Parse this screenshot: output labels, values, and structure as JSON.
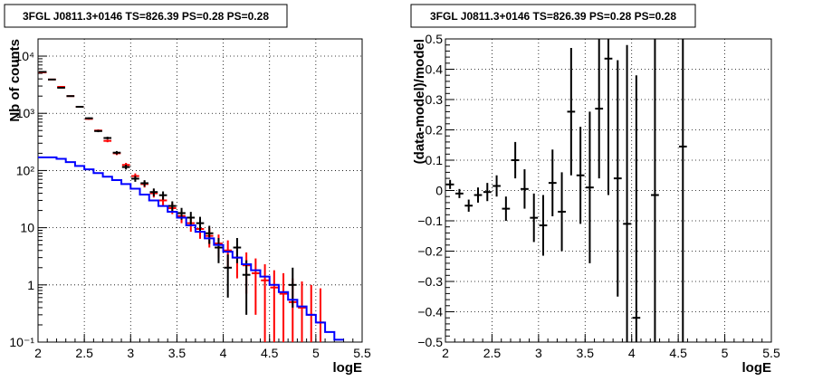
{
  "chart_data": [
    {
      "type": "scatter",
      "title": "3FGL J0811.3+0146 TS=826.39 PS=0.28 PS=0.28",
      "xlabel": "logE",
      "ylabel": "Nb of counts",
      "xlim": [
        2,
        5.5
      ],
      "ylim": [
        0.1,
        20000
      ],
      "yscale": "log",
      "grid": true,
      "x_ticks": [
        "2",
        "2.5",
        "3",
        "3.5",
        "4",
        "4.5",
        "5",
        "5.5"
      ],
      "y_ticks": [
        "10⁻¹",
        "1",
        "10",
        "10²",
        "10³",
        "10⁴"
      ],
      "series": [
        {
          "color": "#ff0000",
          "style": "errorbar",
          "x": [
            2.05,
            2.15,
            2.25,
            2.35,
            2.45,
            2.55,
            2.65,
            2.75,
            2.85,
            2.95,
            3.05,
            3.15,
            3.25,
            3.35,
            3.45,
            3.55,
            3.65,
            3.75,
            3.85,
            3.95,
            4.05,
            4.15,
            4.25,
            4.35,
            4.45,
            4.55,
            4.65,
            4.75,
            4.85,
            4.95,
            5.05
          ],
          "y": [
            5200,
            3900,
            2900,
            2000,
            1300,
            800,
            500,
            330,
            200,
            125,
            80,
            58,
            40,
            30,
            22,
            16,
            12,
            9.5,
            7.2,
            5.3,
            4.0,
            3.0,
            2.2,
            1.6,
            1.2,
            0.9,
            0.7,
            0.5,
            0.4,
            0.3,
            0.22
          ],
          "yerr_low": [
            70,
            60,
            54,
            45,
            36,
            28,
            22,
            18,
            14,
            11,
            9,
            7.6,
            6.3,
            5.5,
            4.7,
            4.0,
            3.5,
            3.1,
            2.7,
            2.3,
            2.0,
            1.7,
            1.5,
            1.3,
            1.1,
            0.9,
            0.7,
            0.5,
            0.4,
            0.3,
            0.22
          ],
          "yerr_high": [
            70,
            60,
            54,
            45,
            36,
            28,
            22,
            18,
            14,
            11,
            9,
            7.6,
            6.3,
            5.5,
            4.7,
            4.0,
            3.5,
            3.1,
            2.7,
            2.3,
            2.0,
            1.7,
            1.5,
            1.3,
            1.1,
            0.9,
            0.9,
            0.8,
            0.75,
            0.7,
            0.65
          ]
        },
        {
          "color": "#000000",
          "style": "errorbar",
          "x": [
            2.05,
            2.15,
            2.25,
            2.35,
            2.45,
            2.55,
            2.65,
            2.75,
            2.85,
            2.95,
            3.05,
            3.15,
            3.25,
            3.35,
            3.45,
            3.55,
            3.65,
            3.75,
            3.85,
            3.95,
            4.05,
            4.15,
            4.25,
            4.75
          ],
          "y": [
            5300,
            3900,
            2800,
            2000,
            1300,
            820,
            490,
            370,
            205,
            115,
            72,
            60,
            42,
            37,
            24,
            18,
            15,
            12,
            8,
            4.5,
            2.0,
            4.5,
            1.5,
            1.0
          ],
          "yerr_low": [
            70,
            60,
            53,
            45,
            36,
            29,
            22,
            19,
            14,
            11,
            8.5,
            7.7,
            6.5,
            6.1,
            4.9,
            4.2,
            3.9,
            3.5,
            2.8,
            2.1,
            1.4,
            2.1,
            1.2,
            0.6
          ],
          "yerr_high": [
            70,
            60,
            53,
            45,
            36,
            29,
            22,
            19,
            14,
            11,
            8.5,
            7.7,
            6.5,
            6.1,
            4.9,
            4.2,
            3.9,
            3.5,
            2.8,
            2.1,
            1.4,
            2.1,
            1.2,
            1.0
          ]
        },
        {
          "color": "#0000ff",
          "style": "step",
          "x": [
            2.05,
            2.15,
            2.25,
            2.35,
            2.45,
            2.55,
            2.65,
            2.75,
            2.85,
            2.95,
            3.05,
            3.15,
            3.25,
            3.35,
            3.45,
            3.55,
            3.65,
            3.75,
            3.85,
            3.95,
            4.05,
            4.15,
            4.25,
            4.35,
            4.45,
            4.55,
            4.65,
            4.75,
            4.85,
            4.95,
            5.05,
            5.15,
            5.25
          ],
          "y": [
            170,
            170,
            160,
            140,
            120,
            105,
            90,
            78,
            68,
            58,
            48,
            38,
            30,
            24,
            19,
            15,
            11,
            8.5,
            6.5,
            5,
            3.8,
            3,
            2.3,
            1.8,
            1.4,
            1.0,
            0.75,
            0.55,
            0.42,
            0.3,
            0.22,
            0.15,
            0.11
          ]
        }
      ]
    },
    {
      "type": "scatter",
      "title": "3FGL J0811.3+0146 TS=826.39 PS=0.28 PS=0.28",
      "xlabel": "logE",
      "ylabel": "(data-model)/model",
      "xlim": [
        2,
        5.5
      ],
      "ylim": [
        -0.5,
        0.5
      ],
      "grid": true,
      "x_ticks": [
        "2",
        "2.5",
        "3",
        "3.5",
        "4",
        "4.5",
        "5",
        "5.5"
      ],
      "y_ticks": [
        "−0.5",
        "−0.4",
        "−0.3",
        "−0.2",
        "−0.1",
        "0",
        "0.1",
        "0.2",
        "0.3",
        "0.4",
        "0.5"
      ],
      "series": [
        {
          "color": "#000000",
          "style": "errorbar",
          "x": [
            2.05,
            2.15,
            2.25,
            2.35,
            2.45,
            2.55,
            2.65,
            2.75,
            2.85,
            2.95,
            3.05,
            3.15,
            3.25,
            3.35,
            3.45,
            3.55,
            3.65,
            3.75,
            3.85,
            3.95,
            4.05,
            4.25,
            4.55
          ],
          "y": [
            0.02,
            -0.01,
            -0.05,
            -0.015,
            -0.005,
            0.015,
            -0.06,
            0.1,
            0.005,
            -0.09,
            -0.115,
            0.025,
            -0.07,
            0.26,
            0.05,
            0.01,
            0.27,
            0.435,
            0.04,
            -0.11,
            -0.42,
            -0.015,
            0.145
          ],
          "yerr": [
            0.015,
            0.015,
            0.02,
            0.025,
            0.03,
            0.035,
            0.04,
            0.06,
            0.065,
            0.08,
            0.1,
            0.11,
            0.13,
            0.21,
            0.16,
            0.25,
            0.23,
            0.45,
            0.39,
            0.59,
            0.8,
            1.2,
            1.4
          ]
        }
      ]
    }
  ]
}
